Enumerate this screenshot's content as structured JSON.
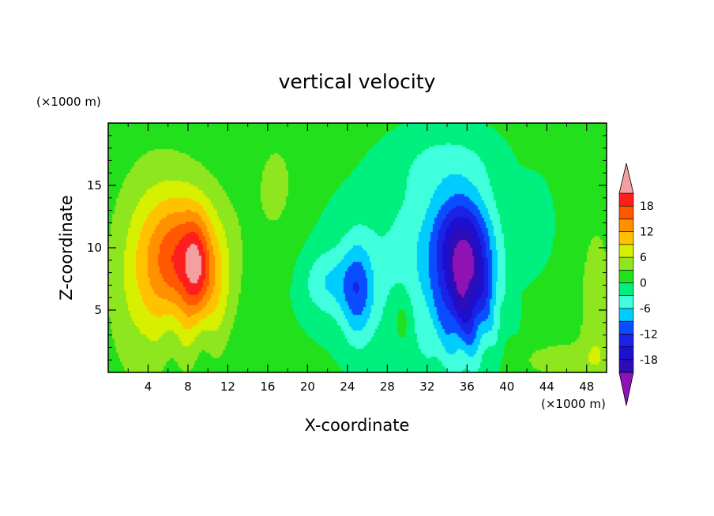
{
  "chart_data": {
    "type": "heatmap",
    "title": "vertical velocity",
    "xlabel": "X-coordinate",
    "ylabel": "Z-coordinate",
    "x_unit": "(×1000 m)",
    "y_unit": "(×1000 m)",
    "xlim": [
      0,
      50
    ],
    "ylim": [
      0,
      20
    ],
    "x_ticks": [
      4,
      8,
      12,
      16,
      20,
      24,
      28,
      32,
      36,
      40,
      44,
      48
    ],
    "y_ticks": [
      5,
      10,
      15
    ],
    "grid": false,
    "colorbar": {
      "levels": [
        -21,
        -18,
        -15,
        -12,
        -9,
        -6,
        -3,
        0,
        3,
        6,
        9,
        12,
        15,
        18,
        21
      ],
      "labels": [
        18,
        12,
        6,
        0,
        -6,
        -12,
        -18
      ],
      "colors": [
        "#7a0ea8",
        "#2c0db8",
        "#1d0fcf",
        "#1a22e6",
        "#0a4cff",
        "#1e8cff",
        "#00ccff",
        "#40ffdd",
        "#00f080",
        "#22e01c",
        "#8ee61e",
        "#d6f000",
        "#fff000",
        "#ffc200",
        "#ff9000",
        "#ff5800",
        "#ff1e1e",
        "#f4a0a0"
      ],
      "over_color": "#f4a0a0",
      "under_color": "#8e12b4"
    },
    "features": [
      {
        "kind": "updraft",
        "x": 8,
        "z": 9,
        "w": 20
      },
      {
        "kind": "updraft",
        "x": 4.5,
        "z": 10,
        "w": 8
      },
      {
        "kind": "updraft",
        "x": 29.5,
        "z": 4.5,
        "w": 4
      },
      {
        "kind": "downdraft",
        "x": 36,
        "z": 7.5,
        "w": -18
      },
      {
        "kind": "downdraft",
        "x": 25,
        "z": 6.5,
        "w": -13
      },
      {
        "kind": "downdraft",
        "x": 22,
        "z": 7,
        "w": -8
      },
      {
        "kind": "downdraft",
        "x": 43,
        "z": 12,
        "w": -6
      },
      {
        "kind": "downdraft",
        "x": 34,
        "z": 17,
        "w": -4
      }
    ]
  }
}
